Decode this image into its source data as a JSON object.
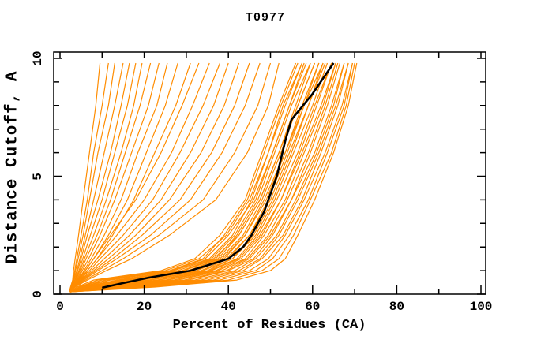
{
  "figure": {
    "title": "T0977"
  },
  "chart_data": {
    "type": "line",
    "title": "T0977",
    "xlabel": "Percent of Residues (CA)",
    "ylabel": "Distance Cutoff, A",
    "xlim": [
      0,
      102
    ],
    "ylim": [
      0,
      10.3
    ],
    "x_ticks": [
      0,
      20,
      40,
      60,
      80,
      100
    ],
    "x_minor_tick_step": 10,
    "y_ticks": [
      0,
      5,
      10
    ],
    "y_minor_tick_step": 1,
    "grid": false,
    "legend": false,
    "background_color": "#ffffff",
    "frame_color": "#000000",
    "curve_color": "#FF8C00",
    "highlight_color": "#000000",
    "cutoffs": [
      0.1,
      0.3,
      0.6,
      1.0,
      1.5,
      2.5,
      4.0,
      6.0,
      8.0,
      9.8
    ],
    "curves": [
      [
        2.5,
        4.0,
        8.0,
        24.0,
        32.0,
        38.0,
        44.0,
        48.0,
        52.0,
        56.0
      ],
      [
        2.5,
        4.5,
        9.0,
        26.0,
        34.0,
        39.0,
        44.5,
        48.5,
        52.5,
        56.5
      ],
      [
        2.5,
        4.5,
        10.0,
        25.0,
        33.0,
        39.5,
        45.0,
        49.5,
        53.0,
        57.5
      ],
      [
        2.5,
        5.0,
        11.0,
        27.0,
        35.5,
        41.0,
        45.5,
        49.5,
        53.5,
        57.5
      ],
      [
        2.5,
        5.0,
        12.0,
        26.5,
        34.5,
        40.0,
        46.0,
        50.5,
        54.5,
        58.0
      ],
      [
        2.5,
        5.5,
        13.5,
        28.0,
        36.0,
        41.5,
        46.5,
        50.5,
        54.5,
        58.5
      ],
      [
        2.5,
        6.0,
        14.0,
        29.5,
        37.0,
        42.0,
        47.0,
        51.0,
        55.0,
        59.5
      ],
      [
        2.5,
        6.0,
        15.0,
        29.0,
        36.5,
        42.5,
        47.5,
        52.0,
        56.0,
        59.5
      ],
      [
        2.5,
        6.5,
        16.0,
        30.5,
        37.5,
        42.5,
        47.5,
        52.0,
        56.5,
        60.5
      ],
      [
        2.5,
        7.0,
        17.0,
        30.5,
        38.0,
        43.5,
        48.0,
        52.5,
        56.5,
        60.5
      ],
      [
        2.5,
        7.0,
        18.0,
        31.5,
        38.5,
        44.0,
        48.5,
        53.5,
        57.5,
        61.5
      ],
      [
        2.5,
        7.5,
        18.5,
        32.5,
        39.0,
        44.0,
        49.0,
        53.5,
        58.0,
        61.5
      ],
      [
        2.5,
        8.0,
        19.5,
        32.5,
        39.5,
        45.0,
        49.5,
        54.0,
        58.0,
        62.5
      ],
      [
        2.5,
        8.5,
        21.0,
        33.5,
        40.0,
        45.0,
        50.0,
        54.5,
        59.0,
        62.5
      ],
      [
        2.5,
        9.0,
        21.5,
        34.0,
        41.0,
        46.0,
        50.5,
        55.0,
        59.0,
        63.0
      ],
      [
        2.5,
        9.5,
        23.0,
        35.0,
        41.0,
        46.5,
        51.0,
        55.5,
        60.0,
        63.5
      ],
      [
        2.5,
        10.0,
        23.5,
        35.5,
        42.0,
        47.0,
        51.5,
        56.5,
        60.5,
        64.5
      ],
      [
        2.5,
        10.5,
        25.0,
        36.0,
        42.5,
        47.5,
        52.5,
        57.0,
        61.0,
        64.5
      ],
      [
        2.5,
        11.0,
        25.5,
        37.0,
        43.0,
        48.0,
        52.5,
        57.5,
        62.0,
        65.5
      ],
      [
        2.5,
        11.5,
        27.0,
        37.5,
        44.0,
        48.5,
        53.5,
        58.0,
        62.5,
        65.5
      ],
      [
        2.5,
        12.0,
        28.0,
        38.5,
        44.5,
        49.5,
        54.0,
        59.0,
        63.0,
        66.0
      ],
      [
        2.5,
        13.0,
        29.5,
        39.5,
        45.0,
        50.0,
        55.0,
        59.5,
        63.5,
        66.5
      ],
      [
        2.5,
        14.0,
        30.5,
        40.0,
        46.0,
        50.5,
        55.0,
        60.5,
        64.5,
        67.5
      ],
      [
        2.5,
        15.0,
        32.0,
        41.5,
        46.5,
        51.5,
        56.0,
        61.0,
        65.0,
        67.5
      ],
      [
        2.5,
        16.0,
        33.5,
        42.5,
        47.5,
        52.0,
        56.5,
        61.5,
        65.5,
        68.5
      ],
      [
        2.5,
        17.0,
        35.0,
        43.5,
        48.0,
        53.0,
        57.5,
        62.0,
        66.0,
        68.5
      ],
      [
        2.5,
        18.0,
        36.5,
        45.0,
        49.5,
        53.5,
        58.0,
        63.0,
        67.0,
        69.5
      ],
      [
        2.5,
        19.5,
        38.0,
        46.5,
        50.5,
        54.5,
        59.0,
        63.5,
        67.5,
        69.5
      ],
      [
        2.5,
        21.0,
        40.0,
        48.0,
        52.0,
        55.5,
        59.5,
        64.5,
        68.0,
        70.0
      ],
      [
        2.5,
        22.5,
        42.0,
        50.0,
        53.5,
        56.5,
        60.5,
        65.0,
        68.5,
        70.5
      ],
      [
        2.2,
        2.5,
        3.0,
        3.2,
        3.6,
        4.4,
        5.5,
        7.0,
        8.5,
        9.5
      ],
      [
        2.2,
        2.6,
        3.1,
        3.5,
        4.0,
        5.0,
        6.5,
        8.0,
        10.0,
        11.5
      ],
      [
        2.2,
        2.7,
        3.2,
        3.7,
        4.3,
        5.5,
        7.0,
        9.0,
        11.5,
        13.0
      ],
      [
        2.2,
        2.7,
        3.3,
        4.0,
        4.7,
        6.0,
        8.0,
        10.5,
        13.0,
        15.0
      ],
      [
        2.2,
        2.8,
        3.5,
        4.2,
        5.0,
        6.5,
        9.0,
        12.0,
        14.5,
        16.5
      ],
      [
        2.2,
        2.8,
        3.6,
        4.5,
        5.4,
        7.2,
        10.0,
        13.0,
        16.0,
        18.0
      ],
      [
        2.2,
        2.9,
        3.8,
        4.7,
        5.8,
        8.0,
        11.0,
        14.5,
        17.5,
        19.5
      ],
      [
        2.2,
        3.0,
        4.0,
        5.0,
        6.2,
        8.8,
        12.0,
        15.5,
        19.0,
        21.5
      ],
      [
        2.2,
        3.0,
        4.2,
        5.3,
        6.8,
        9.5,
        13.0,
        17.0,
        21.0,
        23.5
      ],
      [
        2.2,
        3.1,
        4.4,
        5.7,
        7.4,
        10.5,
        14.5,
        18.5,
        23.0,
        25.5
      ],
      [
        2.2,
        3.2,
        4.6,
        6.0,
        8.0,
        11.5,
        16.0,
        20.5,
        25.0,
        28.0
      ],
      [
        2.2,
        3.3,
        4.9,
        6.5,
        8.8,
        12.5,
        17.5,
        22.5,
        27.5,
        31.0
      ],
      [
        2.3,
        3.0,
        4.0,
        6.0,
        8.0,
        12.0,
        18.0,
        24.0,
        29.0,
        33.0
      ],
      [
        2.3,
        3.0,
        4.3,
        6.5,
        8.8,
        13.5,
        20.0,
        26.5,
        31.5,
        35.5
      ],
      [
        2.3,
        3.1,
        4.5,
        7.0,
        9.5,
        15.0,
        22.0,
        28.5,
        34.0,
        38.0
      ],
      [
        2.3,
        3.2,
        4.8,
        7.5,
        10.5,
        16.5,
        24.0,
        31.0,
        36.5,
        40.0
      ],
      [
        2.3,
        3.2,
        5.0,
        8.0,
        11.5,
        18.0,
        26.0,
        33.5,
        39.0,
        42.5
      ],
      [
        2.3,
        3.3,
        5.3,
        8.5,
        12.5,
        19.5,
        28.5,
        36.0,
        41.5,
        45.0
      ],
      [
        2.3,
        3.4,
        5.6,
        9.0,
        13.5,
        21.5,
        31.0,
        38.5,
        44.0,
        47.5
      ],
      [
        2.3,
        3.5,
        6.0,
        10.0,
        15.0,
        23.5,
        34.0,
        41.5,
        47.0,
        50.0
      ],
      [
        2.3,
        3.6,
        6.5,
        11.0,
        17.0,
        26.0,
        37.0,
        44.5,
        49.5,
        52.0
      ]
    ],
    "highlight_curve": {
      "cutoffs": [
        0.27,
        0.45,
        0.7,
        1.0,
        1.5,
        2.0,
        2.5,
        3.5,
        5.0,
        6.5,
        7.4,
        8.5,
        9.8
      ],
      "percents": [
        10,
        14.5,
        21,
        31,
        40,
        43.5,
        45.5,
        48.5,
        51.5,
        53.5,
        55,
        60,
        65
      ]
    }
  }
}
